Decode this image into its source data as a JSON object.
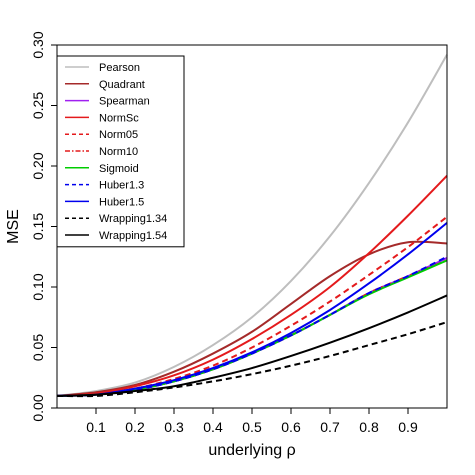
{
  "chart_data": {
    "type": "line",
    "title": "",
    "xlabel": "underlying ρ",
    "ylabel": "MSE",
    "xlim": [
      0,
      1
    ],
    "ylim": [
      0,
      0.3
    ],
    "xticks": [
      0.1,
      0.2,
      0.3,
      0.4,
      0.5,
      0.6,
      0.7,
      0.8,
      0.9
    ],
    "xtick_labels": [
      "0.1",
      "0.2",
      "0.3",
      "0.4",
      "0.5",
      "0.6",
      "0.7",
      "0.8",
      "0.9"
    ],
    "yticks": [
      0,
      0.05,
      0.1,
      0.15,
      0.2,
      0.25,
      0.3
    ],
    "ytick_labels": [
      "0.00",
      "0.05",
      "0.10",
      "0.15",
      "0.20",
      "0.25",
      "0.30"
    ],
    "grid": false,
    "legend_position": "top-left",
    "x": [
      0,
      0.1,
      0.2,
      0.3,
      0.4,
      0.5,
      0.6,
      0.7,
      0.8,
      0.9,
      1.0
    ],
    "series": [
      {
        "name": "Pearson",
        "color": "#bebebe",
        "dash": "solid",
        "values": [
          0.01,
          0.014,
          0.021,
          0.034,
          0.052,
          0.075,
          0.105,
          0.142,
          0.186,
          0.236,
          0.292
        ]
      },
      {
        "name": "Quadrant",
        "color": "#a52a2a",
        "dash": "solid",
        "values": [
          0.01,
          0.013,
          0.019,
          0.03,
          0.045,
          0.063,
          0.086,
          0.109,
          0.127,
          0.137,
          0.136
        ]
      },
      {
        "name": "Spearman",
        "color": "#a020f0",
        "dash": "solid",
        "values": [
          0.01,
          0.011,
          0.015,
          0.022,
          0.032,
          0.045,
          0.06,
          0.077,
          0.095,
          0.109,
          0.124
        ]
      },
      {
        "name": "NormSc",
        "color": "#e41a1c",
        "dash": "solid",
        "values": [
          0.01,
          0.012,
          0.018,
          0.027,
          0.04,
          0.057,
          0.077,
          0.1,
          0.128,
          0.159,
          0.192
        ]
      },
      {
        "name": "Norm05",
        "color": "#e41a1c",
        "dash": "dashed",
        "values": [
          0.01,
          0.011,
          0.016,
          0.024,
          0.035,
          0.05,
          0.068,
          0.088,
          0.11,
          0.133,
          0.158
        ]
      },
      {
        "name": "Norm10",
        "color": "#e41a1c",
        "dash": "dashdot",
        "values": [
          0.01,
          0.011,
          0.015,
          0.022,
          0.032,
          0.045,
          0.06,
          0.077,
          0.095,
          0.109,
          0.122
        ]
      },
      {
        "name": "Sigmoid",
        "color": "#00cc00",
        "dash": "solid",
        "values": [
          0.01,
          0.011,
          0.015,
          0.022,
          0.032,
          0.045,
          0.06,
          0.077,
          0.094,
          0.108,
          0.122
        ]
      },
      {
        "name": "Huber1.3",
        "color": "#0000ee",
        "dash": "dashed",
        "values": [
          0.01,
          0.011,
          0.015,
          0.022,
          0.032,
          0.045,
          0.06,
          0.077,
          0.095,
          0.109,
          0.125
        ]
      },
      {
        "name": "Huber1.5",
        "color": "#0000ee",
        "dash": "solid",
        "values": [
          0.01,
          0.011,
          0.016,
          0.023,
          0.033,
          0.046,
          0.062,
          0.081,
          0.103,
          0.127,
          0.153
        ]
      },
      {
        "name": "Wrapping1.34",
        "color": "#000000",
        "dash": "dashed",
        "values": [
          0.01,
          0.01,
          0.013,
          0.017,
          0.022,
          0.028,
          0.035,
          0.043,
          0.052,
          0.061,
          0.071
        ]
      },
      {
        "name": "Wrapping1.54",
        "color": "#000000",
        "dash": "solid",
        "values": [
          0.01,
          0.011,
          0.014,
          0.018,
          0.025,
          0.033,
          0.043,
          0.054,
          0.066,
          0.079,
          0.093
        ]
      }
    ]
  }
}
